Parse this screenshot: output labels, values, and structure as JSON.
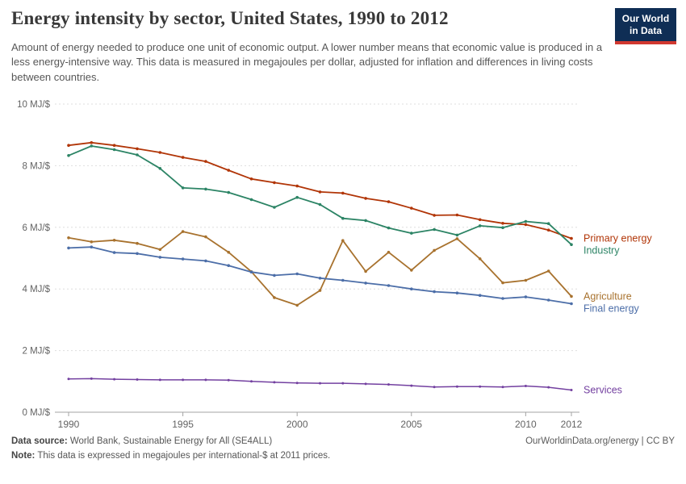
{
  "header": {
    "title": "Energy intensity by sector, United States, 1990 to 2012",
    "subtitle": "Amount of energy needed to produce one unit of economic output. A lower number means that economic value is produced in a less energy-intensive way. This data is measured in megajoules per dollar, adjusted for inflation and differences in living costs between countries.",
    "logo": {
      "line1": "Our World",
      "line2": "in Data",
      "bg_color": "#0f2e55",
      "stripe_color": "#d13830"
    }
  },
  "chart_data": {
    "type": "line",
    "title": "Energy intensity by sector, United States, 1990 to 2012",
    "unit": "MJ/$",
    "x": [
      1990,
      1991,
      1992,
      1993,
      1994,
      1995,
      1996,
      1997,
      1998,
      1999,
      2000,
      2001,
      2002,
      2003,
      2004,
      2005,
      2006,
      2007,
      2008,
      2009,
      2010,
      2011,
      2012
    ],
    "series": [
      {
        "name": "Primary energy",
        "color": "#b13507",
        "values": [
          8.66,
          8.75,
          8.66,
          8.55,
          8.43,
          8.27,
          8.14,
          7.85,
          7.57,
          7.45,
          7.34,
          7.15,
          7.11,
          6.94,
          6.83,
          6.62,
          6.39,
          6.4,
          6.25,
          6.13,
          6.09,
          5.91,
          5.64
        ]
      },
      {
        "name": "Industry",
        "color": "#2c8465",
        "values": [
          8.33,
          8.64,
          8.52,
          8.35,
          7.91,
          7.28,
          7.24,
          7.13,
          6.9,
          6.65,
          6.97,
          6.74,
          6.29,
          6.22,
          5.98,
          5.81,
          5.93,
          5.75,
          6.05,
          5.99,
          6.19,
          6.12,
          5.44
        ]
      },
      {
        "name": "Agriculture",
        "color": "#a8722e",
        "values": [
          5.66,
          5.53,
          5.58,
          5.48,
          5.28,
          5.86,
          5.69,
          5.19,
          4.56,
          3.72,
          3.47,
          3.95,
          5.57,
          4.57,
          5.19,
          4.61,
          5.25,
          5.63,
          4.98,
          4.2,
          4.28,
          4.58,
          3.76
        ]
      },
      {
        "name": "Final energy",
        "color": "#4c6ea8",
        "values": [
          5.33,
          5.36,
          5.18,
          5.15,
          5.03,
          4.97,
          4.91,
          4.76,
          4.55,
          4.44,
          4.49,
          4.35,
          4.28,
          4.19,
          4.11,
          4.0,
          3.91,
          3.87,
          3.79,
          3.69,
          3.74,
          3.64,
          3.52
        ]
      },
      {
        "name": "Services",
        "color": "#7340a0",
        "values": [
          1.08,
          1.09,
          1.07,
          1.06,
          1.05,
          1.05,
          1.05,
          1.04,
          1.0,
          0.97,
          0.95,
          0.94,
          0.94,
          0.92,
          0.9,
          0.86,
          0.82,
          0.83,
          0.83,
          0.82,
          0.85,
          0.81,
          0.72
        ]
      }
    ],
    "ylim": [
      0,
      10
    ],
    "yticks": [
      0,
      2,
      4,
      6,
      8,
      10
    ],
    "ytick_labels": [
      "0 MJ/$",
      "2 MJ/$",
      "4 MJ/$",
      "6 MJ/$",
      "8 MJ/$",
      "10 MJ/$"
    ],
    "xticks": [
      1990,
      1995,
      2000,
      2005,
      2010,
      2012
    ],
    "grid": "horizontal-dashed",
    "grid_color": "#dedede",
    "axis_color": "#a3a3a3",
    "tick_text_color": "#636363",
    "legend_position": "right-of-line-ends"
  },
  "footer": {
    "datasource_label": "Data source:",
    "datasource_value": " World Bank, Sustainable Energy for All (SE4ALL)",
    "link": "OurWorldinData.org/energy | CC BY",
    "note_label": "Note:",
    "note_value": " This data is expressed in megajoules per international-$ at 2011 prices."
  }
}
